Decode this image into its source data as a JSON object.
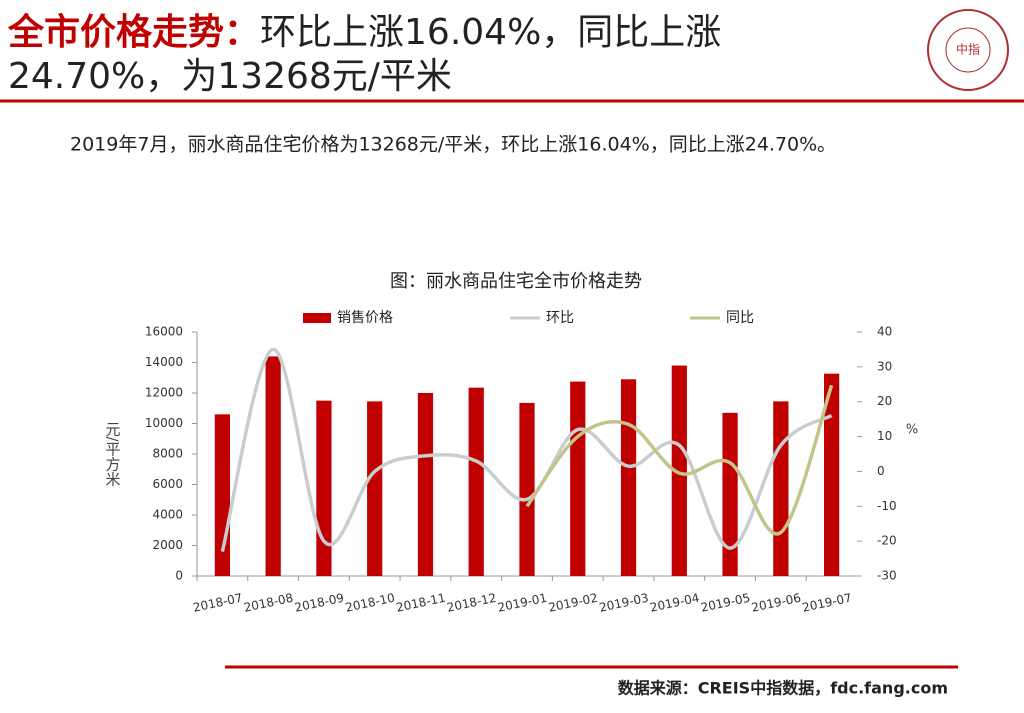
{
  "header": {
    "highlight": "全市价格走势：",
    "lines": [
      "环比上涨16.04%，同比上涨",
      "24.70%，为13268元/平米"
    ],
    "subtitle": "2019年7月，丽水商品住宅价格为13268元/平米，环比上涨16.04%，同比上涨24.70%。",
    "logo": "中指"
  },
  "chart_data": {
    "type": "bar-line",
    "title": "图：丽水商品住宅全市价格走势",
    "categories": [
      "2018-07",
      "2018-08",
      "2018-09",
      "2018-10",
      "2018-11",
      "2018-12",
      "2019-01",
      "2019-02",
      "2019-03",
      "2019-04",
      "2019-05",
      "2019-06",
      "2019-07"
    ],
    "series": [
      {
        "name": "销售价格",
        "type": "bar",
        "color": "#c00000",
        "values": [
          10600,
          14400,
          11500,
          11450,
          12000,
          12350,
          11350,
          12750,
          12900,
          13800,
          10700,
          11450,
          13268
        ]
      },
      {
        "name": "环比",
        "type": "line",
        "axis": "y2",
        "color": "#c8cdd0",
        "values": [
          -23,
          35,
          -20,
          0,
          4.5,
          3,
          -8,
          12,
          1.5,
          7.5,
          -22,
          7.5,
          16.04
        ]
      },
      {
        "name": "同比",
        "type": "line",
        "axis": "y2",
        "color": "#c4c48a",
        "values": [
          null,
          null,
          null,
          null,
          null,
          null,
          -10,
          10,
          13.5,
          -0.5,
          2.5,
          -17.5,
          24.7
        ]
      }
    ],
    "ylabel": "元/平方米",
    "y2label": "%",
    "ylim": [
      0,
      16000
    ],
    "yticks": [
      0,
      2000,
      4000,
      6000,
      8000,
      10000,
      12000,
      14000,
      16000
    ],
    "y2lim": [
      -30,
      40
    ],
    "y2ticks": [
      -30,
      -20,
      -10,
      0,
      10,
      20,
      30,
      40
    ]
  },
  "footer": {
    "source": "数据来源：CREIS中指数据，fdc.fang.com"
  }
}
